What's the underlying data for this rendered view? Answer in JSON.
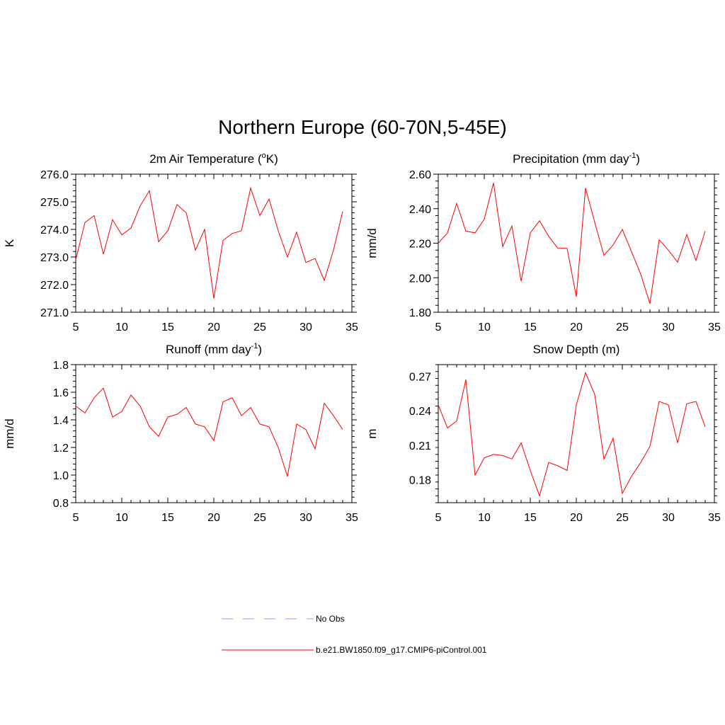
{
  "figure": {
    "title": "Northern Europe (60-70N,5-45E)"
  },
  "chart_data": [
    {
      "id": "temp",
      "type": "line",
      "title": "2m Air Temperature (",
      "title_sup": "o",
      "title_suffix": "K)",
      "xlabel": "",
      "ylabel": "K",
      "xlim": [
        5,
        35
      ],
      "ylim": [
        271.0,
        276.0
      ],
      "xticks": [
        "5",
        "10",
        "15",
        "20",
        "25",
        "30",
        "35"
      ],
      "yticks": [
        "271.0",
        "272.0",
        "273.0",
        "274.0",
        "275.0",
        "276.0"
      ],
      "x": [
        5,
        6,
        7,
        8,
        9,
        10,
        11,
        12,
        13,
        14,
        15,
        16,
        17,
        18,
        19,
        20,
        21,
        22,
        23,
        24,
        25,
        26,
        27,
        28,
        29,
        30,
        31,
        32,
        33,
        34
      ],
      "series": [
        {
          "name": "b.e21.BW1850.f09_g17.CMIP6-piControl.001",
          "values": [
            272.9,
            274.25,
            274.5,
            273.1,
            274.35,
            273.8,
            274.05,
            274.85,
            275.4,
            273.55,
            273.95,
            274.9,
            274.6,
            273.25,
            274.0,
            271.5,
            273.6,
            273.85,
            273.95,
            275.5,
            274.5,
            275.1,
            273.95,
            273.0,
            273.9,
            272.8,
            272.95,
            272.15,
            273.25,
            274.65
          ]
        }
      ]
    },
    {
      "id": "precip",
      "type": "line",
      "title": "Precipitation (mm day",
      "title_sup": "-1",
      "title_suffix": ")",
      "xlabel": "",
      "ylabel": "mm/d",
      "xlim": [
        5,
        35
      ],
      "ylim": [
        1.8,
        2.6
      ],
      "xticks": [
        "5",
        "10",
        "15",
        "20",
        "25",
        "30",
        "35"
      ],
      "yticks": [
        "1.80",
        "2.00",
        "2.20",
        "2.40",
        "2.60"
      ],
      "x": [
        5,
        6,
        7,
        8,
        9,
        10,
        11,
        12,
        13,
        14,
        15,
        16,
        17,
        18,
        19,
        20,
        21,
        22,
        23,
        24,
        25,
        26,
        27,
        28,
        29,
        30,
        31,
        32,
        33,
        34
      ],
      "series": [
        {
          "name": "b.e21.BW1850.f09_g17.CMIP6-piControl.001",
          "values": [
            2.2,
            2.26,
            2.43,
            2.27,
            2.26,
            2.34,
            2.55,
            2.18,
            2.3,
            1.98,
            2.26,
            2.33,
            2.24,
            2.17,
            2.17,
            1.89,
            2.52,
            2.32,
            2.13,
            2.19,
            2.28,
            2.15,
            2.02,
            1.85,
            2.22,
            2.16,
            2.09,
            2.25,
            2.1,
            2.27
          ]
        }
      ]
    },
    {
      "id": "runoff",
      "type": "line",
      "title": "Runoff (mm day",
      "title_sup": "-1",
      "title_suffix": ")",
      "xlabel": "",
      "ylabel": "mm/d",
      "xlim": [
        5,
        35
      ],
      "ylim": [
        0.8,
        1.8
      ],
      "xticks": [
        "5",
        "10",
        "15",
        "20",
        "25",
        "30",
        "35"
      ],
      "yticks": [
        "0.8",
        "1.0",
        "1.2",
        "1.4",
        "1.6",
        "1.8"
      ],
      "x": [
        5,
        6,
        7,
        8,
        9,
        10,
        11,
        12,
        13,
        14,
        15,
        16,
        17,
        18,
        19,
        20,
        21,
        22,
        23,
        24,
        25,
        26,
        27,
        28,
        29,
        30,
        31,
        32,
        33,
        34
      ],
      "series": [
        {
          "name": "b.e21.BW1850.f09_g17.CMIP6-piControl.001",
          "values": [
            1.5,
            1.45,
            1.56,
            1.63,
            1.42,
            1.46,
            1.58,
            1.5,
            1.35,
            1.28,
            1.42,
            1.44,
            1.49,
            1.37,
            1.35,
            1.25,
            1.53,
            1.56,
            1.43,
            1.49,
            1.37,
            1.35,
            1.2,
            0.99,
            1.37,
            1.33,
            1.19,
            1.52,
            1.43,
            1.33
          ]
        }
      ]
    },
    {
      "id": "snow",
      "type": "line",
      "title": "Snow Depth (m)",
      "title_sup": "",
      "title_suffix": "",
      "xlabel": "",
      "ylabel": "m",
      "xlim": [
        5,
        35
      ],
      "ylim": [
        0.16,
        0.28
      ],
      "xticks": [
        "5",
        "10",
        "15",
        "20",
        "25",
        "30",
        "35"
      ],
      "yticks": [
        "0.18",
        "0.21",
        "0.24",
        "0.27"
      ],
      "yticks_values": [
        0.18,
        0.21,
        0.24,
        0.27
      ],
      "x": [
        5,
        6,
        7,
        8,
        9,
        10,
        11,
        12,
        13,
        14,
        15,
        16,
        17,
        18,
        19,
        20,
        21,
        22,
        23,
        24,
        25,
        26,
        27,
        28,
        29,
        30,
        31,
        32,
        33,
        34
      ],
      "series": [
        {
          "name": "b.e21.BW1850.f09_g17.CMIP6-piControl.001",
          "values": [
            0.245,
            0.225,
            0.231,
            0.267,
            0.184,
            0.199,
            0.202,
            0.201,
            0.198,
            0.212,
            0.188,
            0.166,
            0.195,
            0.192,
            0.188,
            0.245,
            0.273,
            0.254,
            0.198,
            0.216,
            0.168,
            0.183,
            0.195,
            0.209,
            0.248,
            0.245,
            0.212,
            0.246,
            0.248,
            0.226
          ]
        }
      ]
    }
  ],
  "legend": {
    "items": [
      {
        "label": "No Obs",
        "color": "#9999ff",
        "style": "dashed"
      },
      {
        "label": "b.e21.BW1850.f09_g17.CMIP6-piControl.001",
        "color": "#ff0000",
        "style": "solid"
      }
    ]
  },
  "colors": {
    "series": "#ff0000",
    "obs": "#9999ff",
    "axes": "#000000"
  }
}
